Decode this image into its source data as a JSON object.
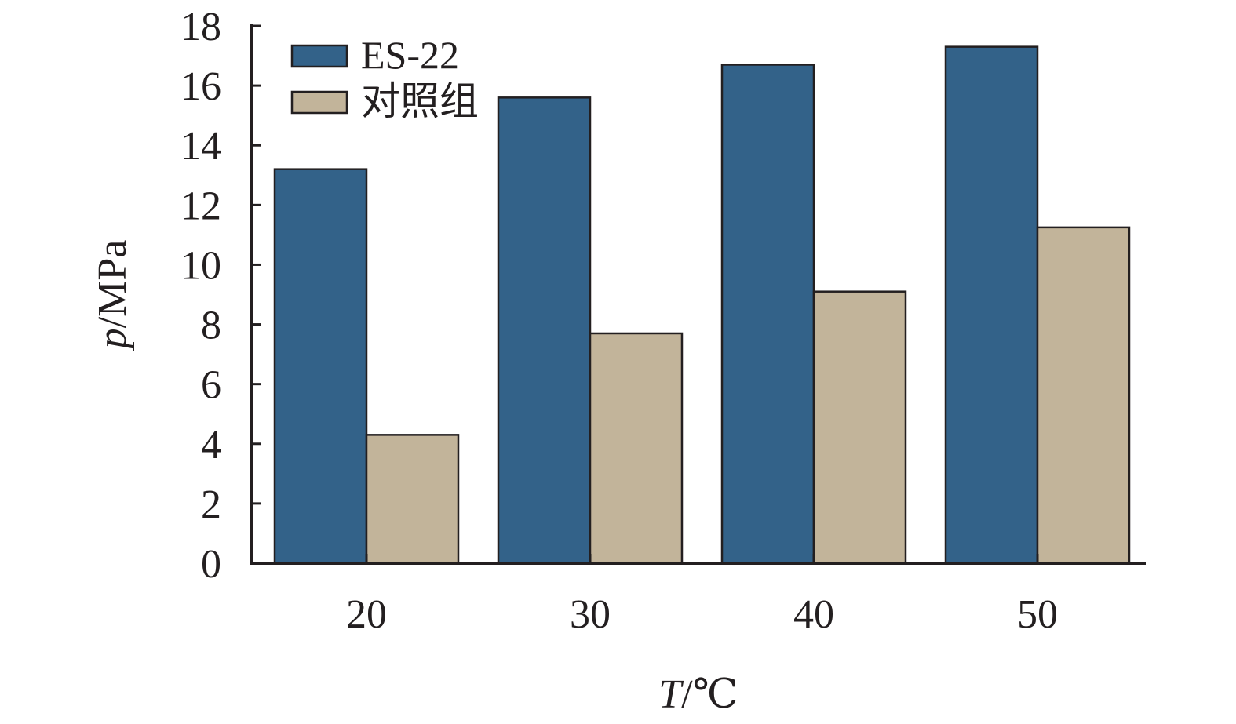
{
  "chart_data": {
    "type": "bar",
    "categories": [
      "20",
      "30",
      "40",
      "50"
    ],
    "series": [
      {
        "name": "ES-22",
        "values": [
          13.2,
          15.6,
          16.7,
          17.3
        ],
        "color": "#336289"
      },
      {
        "name": "对照组",
        "values": [
          4.3,
          7.7,
          9.1,
          11.25
        ],
        "color": "#c2b49a"
      }
    ],
    "xlabel_var": "T",
    "xlabel_unit": "/℃",
    "ylabel_var": "p",
    "ylabel_unit": "/MPa",
    "ylim": [
      0,
      18
    ],
    "yticks": [
      0,
      2,
      4,
      6,
      8,
      10,
      12,
      14,
      16,
      18
    ],
    "grid": false,
    "legend_position": "top-left"
  }
}
